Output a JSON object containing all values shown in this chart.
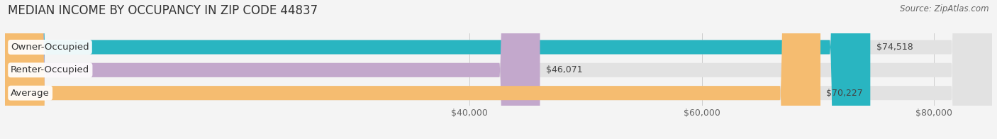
{
  "title": "MEDIAN INCOME BY OCCUPANCY IN ZIP CODE 44837",
  "source": "Source: ZipAtlas.com",
  "categories": [
    "Owner-Occupied",
    "Renter-Occupied",
    "Average"
  ],
  "values": [
    74518,
    46071,
    70227
  ],
  "bar_colors": [
    "#29b5c1",
    "#c3a8cc",
    "#f5bc70"
  ],
  "bar_labels": [
    "$74,518",
    "$46,071",
    "$70,227"
  ],
  "xlim_min": 0,
  "xlim_max": 85000,
  "xticks": [
    40000,
    60000,
    80000
  ],
  "xticklabels": [
    "$40,000",
    "$60,000",
    "$80,000"
  ],
  "background_color": "#f4f4f4",
  "bar_bg_color": "#e2e2e2",
  "title_fontsize": 12,
  "source_fontsize": 8.5,
  "tick_fontsize": 9,
  "bar_label_fontsize": 9,
  "category_fontsize": 9.5
}
